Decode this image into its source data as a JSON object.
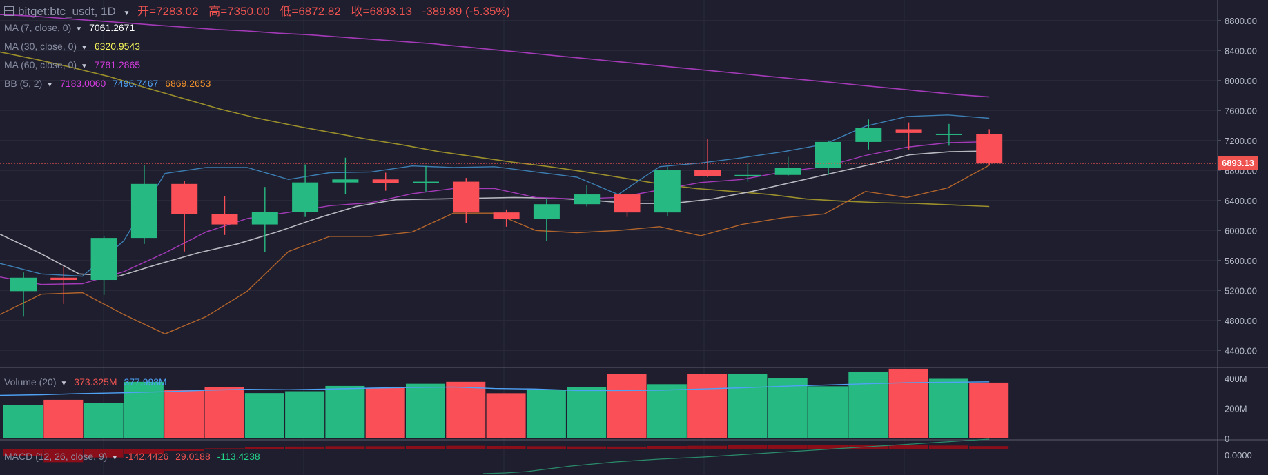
{
  "header": {
    "symbol": "bitget:btc_usdt, 1D",
    "open_label": "开=",
    "open": "7283.02",
    "high_label": "高=",
    "high": "7350.00",
    "low_label": "低=",
    "low": "6872.82",
    "close_label": "收=",
    "close": "6893.13",
    "change": "-389.89 (-5.35%)"
  },
  "indicators": {
    "ma7": {
      "label": "MA (7, close, 0)",
      "value": "7061.2671",
      "color": "#ffffff"
    },
    "ma30": {
      "label": "MA (30, close, 0)",
      "value": "6320.9543",
      "color": "#f5f55a"
    },
    "ma60": {
      "label": "MA (60, close, 0)",
      "value": "7781.2865",
      "color": "#d63ce0"
    },
    "bb": {
      "label": "BB (5, 2)",
      "v1": "7183.0060",
      "v2": "7496.7467",
      "v3": "6869.2653",
      "c1": "#d63ce0",
      "c2": "#4fa3f7",
      "c3": "#f0902a"
    },
    "volume": {
      "label": "Volume (20)",
      "v1": "373.325M",
      "v2": "377.993M",
      "c1": "#ef5350",
      "c2": "#4fa3f7"
    },
    "macd": {
      "label": "MACD (12, 26, close, 9)",
      "v1": "-142.4426",
      "v2": "29.0188",
      "v3": "-113.4238",
      "c1": "#ef5350",
      "c2": "#ef5350",
      "c3": "#22d68a"
    }
  },
  "last_price_tag": "6893.13",
  "colors": {
    "up": "#26b981",
    "down": "#fb4f57",
    "grid": "#2a2c3b",
    "axis": "#b7bbc8",
    "ma7": "#b8b8c0",
    "ma30": "#9a8f2a",
    "ma60": "#a43ab8",
    "bb_upper": "#3d7fb3",
    "bb_lower": "#b2642b"
  },
  "chart_data": {
    "type": "candlestick",
    "title": "bitget:btc_usdt, 1D",
    "price_axis": {
      "ticks": [
        4400,
        4800,
        5200,
        5600,
        6000,
        6400,
        6800,
        7200,
        7600,
        8000,
        8400,
        8800
      ],
      "tick_labels": [
        "4400.00",
        "4800.00",
        "5200.00",
        "5600.00",
        "6000.00",
        "6400.00",
        "6800.00",
        "7200.00",
        "7600.00",
        "8000.00",
        "8400.00",
        "8800.00"
      ],
      "range": [
        4200,
        9000
      ]
    },
    "volume_axis": {
      "ticks": [
        0,
        200,
        400
      ],
      "tick_labels": [
        "0",
        "200M",
        "400M"
      ],
      "range": [
        0,
        460
      ]
    },
    "macd_axis": {
      "tick_labels": [
        "0.0000"
      ]
    },
    "last_price": 6893.13,
    "candles": [
      {
        "o": 5190,
        "h": 5440,
        "l": 4850,
        "c": 5370,
        "vol": 225
      },
      {
        "o": 5370,
        "h": 5520,
        "l": 5020,
        "c": 5340,
        "vol": 258
      },
      {
        "o": 5340,
        "h": 5920,
        "l": 5140,
        "c": 5900,
        "vol": 238
      },
      {
        "o": 5900,
        "h": 6870,
        "l": 5820,
        "c": 6620,
        "vol": 378
      },
      {
        "o": 6620,
        "h": 6660,
        "l": 5720,
        "c": 6220,
        "vol": 322
      },
      {
        "o": 6220,
        "h": 6460,
        "l": 5940,
        "c": 6080,
        "vol": 342
      },
      {
        "o": 6080,
        "h": 6580,
        "l": 5710,
        "c": 6250,
        "vol": 303
      },
      {
        "o": 6250,
        "h": 6880,
        "l": 6180,
        "c": 6640,
        "vol": 315
      },
      {
        "o": 6640,
        "h": 6970,
        "l": 6480,
        "c": 6680,
        "vol": 350
      },
      {
        "o": 6680,
        "h": 6770,
        "l": 6530,
        "c": 6630,
        "vol": 338
      },
      {
        "o": 6630,
        "h": 6860,
        "l": 6520,
        "c": 6650,
        "vol": 365
      },
      {
        "o": 6650,
        "h": 6700,
        "l": 6100,
        "c": 6240,
        "vol": 378
      },
      {
        "o": 6240,
        "h": 6280,
        "l": 6050,
        "c": 6150,
        "vol": 302
      },
      {
        "o": 6150,
        "h": 6430,
        "l": 5860,
        "c": 6350,
        "vol": 323
      },
      {
        "o": 6350,
        "h": 6600,
        "l": 6320,
        "c": 6480,
        "vol": 342
      },
      {
        "o": 6480,
        "h": 6490,
        "l": 6180,
        "c": 6240,
        "vol": 428
      },
      {
        "o": 6240,
        "h": 6850,
        "l": 6190,
        "c": 6810,
        "vol": 362
      },
      {
        "o": 6810,
        "h": 7220,
        "l": 6710,
        "c": 6720,
        "vol": 428
      },
      {
        "o": 6720,
        "h": 6900,
        "l": 6650,
        "c": 6740,
        "vol": 432
      },
      {
        "o": 6740,
        "h": 6980,
        "l": 6720,
        "c": 6830,
        "vol": 402
      },
      {
        "o": 6830,
        "h": 7200,
        "l": 6740,
        "c": 7180,
        "vol": 348
      },
      {
        "o": 7180,
        "h": 7480,
        "l": 7080,
        "c": 7370,
        "vol": 442
      },
      {
        "o": 7350,
        "h": 7440,
        "l": 7080,
        "c": 7300,
        "vol": 465
      },
      {
        "o": 7280,
        "h": 7420,
        "l": 7130,
        "c": 7290,
        "vol": 398
      },
      {
        "o": 7283.02,
        "h": 7350,
        "l": 6872.82,
        "c": 6893.13,
        "vol": 373
      }
    ],
    "series": [
      {
        "name": "MA 60",
        "values": [
          8880,
          8860,
          8830,
          8800,
          8770,
          8740,
          8710,
          8680,
          8660,
          8630,
          8610,
          8580,
          8550,
          8520,
          8490,
          8450,
          8410,
          8370,
          8330,
          8290,
          8250,
          8210,
          8170,
          8130,
          8090,
          8050,
          8010,
          7970,
          7930,
          7890,
          7850,
          7810,
          7781
        ]
      },
      {
        "name": "MA 30",
        "values": [
          8380,
          8280,
          8170,
          8050,
          7900,
          7760,
          7620,
          7500,
          7400,
          7310,
          7220,
          7140,
          7050,
          6980,
          6910,
          6850,
          6780,
          6700,
          6620,
          6560,
          6520,
          6480,
          6420,
          6390,
          6370,
          6360,
          6340,
          6320
        ]
      },
      {
        "name": "MA 7",
        "values": [
          5950,
          5700,
          5420,
          5390,
          5550,
          5700,
          5820,
          5980,
          6160,
          6320,
          6410,
          6420,
          6430,
          6440,
          6430,
          6400,
          6360,
          6360,
          6420,
          6520,
          6640,
          6760,
          6880,
          7010,
          7050,
          7061
        ]
      },
      {
        "name": "BB upper",
        "values": [
          5560,
          5420,
          5390,
          5860,
          6760,
          6840,
          6840,
          6680,
          6770,
          6780,
          6860,
          6840,
          6850,
          6780,
          6710,
          6480,
          6850,
          6900,
          6970,
          7050,
          7150,
          7390,
          7520,
          7540,
          7497
        ]
      },
      {
        "name": "BB mid",
        "values": [
          5380,
          5280,
          5290,
          5450,
          5700,
          5980,
          6160,
          6240,
          6330,
          6370,
          6490,
          6560,
          6560,
          6440,
          6420,
          6440,
          6540,
          6640,
          6680,
          6780,
          6850,
          7000,
          7110,
          7170,
          7183
        ]
      },
      {
        "name": "BB lower",
        "values": [
          4880,
          5150,
          5170,
          4880,
          4620,
          4850,
          5190,
          5720,
          5920,
          5920,
          5980,
          6230,
          6230,
          6000,
          5970,
          6000,
          6050,
          5930,
          6080,
          6170,
          6220,
          6520,
          6440,
          6570,
          6869
        ]
      },
      {
        "name": "Volume MA",
        "values": [
          288,
          292,
          300,
          305,
          312,
          322,
          328,
          325,
          330,
          336,
          340,
          343,
          333,
          330,
          320,
          320,
          322,
          330,
          338,
          348,
          356,
          365,
          372,
          375,
          378
        ]
      },
      {
        "name": "MACD",
        "values": [
          -130,
          -120,
          -100,
          -60,
          -20,
          10,
          40,
          60,
          80,
          95,
          110,
          130,
          150,
          170,
          190,
          210,
          230,
          250,
          270,
          290,
          310,
          330,
          350,
          370,
          -142
        ]
      }
    ],
    "macd_hist": [
      -60,
      -110,
      -70,
      -40,
      -12,
      10,
      22,
      25,
      28,
      28,
      30,
      32,
      30,
      28,
      26,
      25,
      30,
      32,
      36,
      38,
      38,
      38,
      38,
      34,
      29
    ]
  }
}
